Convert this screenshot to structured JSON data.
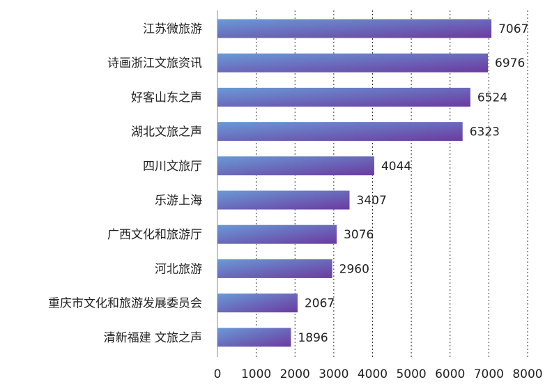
{
  "chart_data": {
    "type": "bar",
    "orientation": "horizontal",
    "categories": [
      "江苏微旅游",
      "诗画浙江文旅资讯",
      "好客山东之声",
      "湖北文旅之声",
      "四川文旅厅",
      "乐游上海",
      "广西文化和旅游厅",
      "河北旅游",
      "重庆市文化和旅游发展委员会",
      "清新福建 文旅之声"
    ],
    "values": [
      7067,
      6976,
      6524,
      6323,
      4044,
      3407,
      3076,
      2960,
      2067,
      1896
    ],
    "x_ticks": [
      "0",
      "1000",
      "2000",
      "3000",
      "4000",
      "5000",
      "6000",
      "7000",
      "8000"
    ],
    "xlim": [
      0,
      8000
    ],
    "grid": "vertical dotted",
    "legend": "none",
    "title": "",
    "xlabel": "",
    "ylabel": "",
    "colors": {
      "bar_start": "#6a9ad6",
      "bar_end": "#6b3aa0",
      "grid": "#333333",
      "axis": "#888888"
    }
  }
}
